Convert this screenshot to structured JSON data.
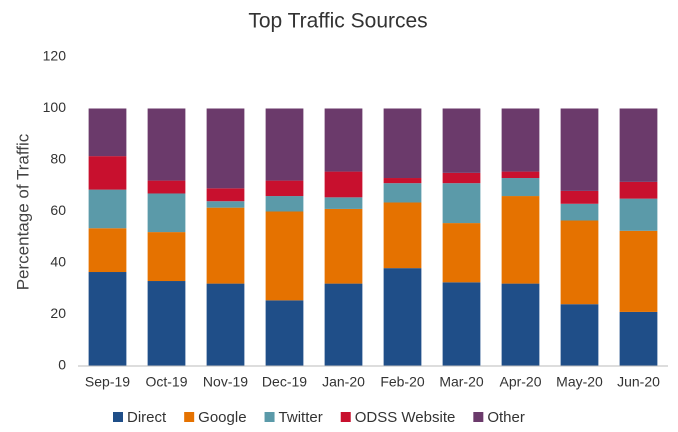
{
  "chart_data": {
    "type": "stacked_bar",
    "title": "Top Traffic Sources",
    "y_label": "Percentage of Traffic",
    "categories": [
      "Sep-19",
      "Oct-19",
      "Nov-19",
      "Dec-19",
      "Jan-20",
      "Feb-20",
      "Mar-20",
      "Apr-20",
      "May-20",
      "Jun-20"
    ],
    "series": [
      {
        "name": "Direct",
        "color": "#1f4e88",
        "values": [
          36.5,
          33,
          32,
          25.5,
          32,
          38,
          32.5,
          32,
          24,
          21
        ]
      },
      {
        "name": "Google",
        "color": "#e57200",
        "values": [
          17,
          19,
          29.5,
          34.5,
          29,
          25.5,
          23,
          34,
          32.5,
          31.5
        ]
      },
      {
        "name": "Twitter",
        "color": "#5b9aa9",
        "values": [
          15,
          15,
          2.5,
          6,
          4.5,
          7.5,
          15.5,
          7,
          6.5,
          12.5
        ]
      },
      {
        "name": "ODSS Website",
        "color": "#c8102e",
        "values": [
          13,
          5,
          5,
          6,
          10,
          2,
          4,
          2.5,
          5,
          6.5
        ]
      },
      {
        "name": "Other",
        "color": "#6b3a6b",
        "values": [
          18.5,
          28,
          31,
          28,
          24.5,
          27,
          25,
          24.5,
          32,
          28.5
        ]
      }
    ],
    "ylim": [
      0,
      120
    ],
    "yticks": [
      0,
      20,
      40,
      60,
      80,
      100,
      120
    ],
    "grid": false,
    "legend": "bottom"
  }
}
